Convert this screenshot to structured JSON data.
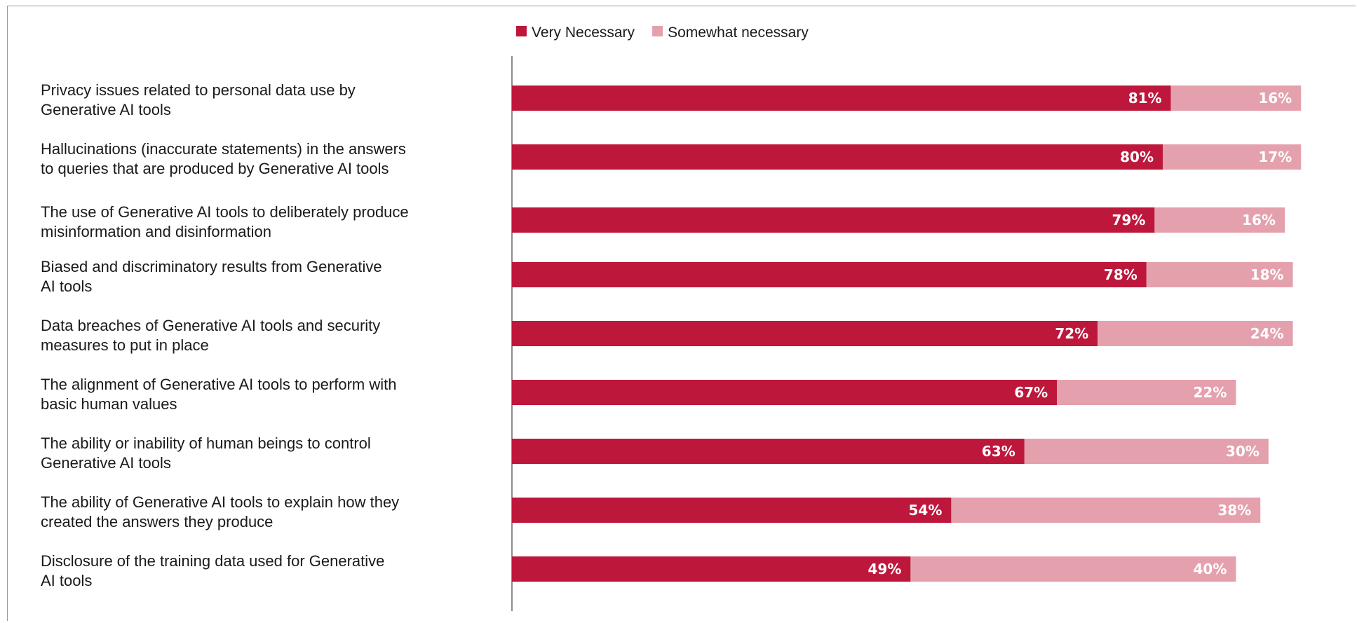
{
  "chart_data": {
    "type": "bar",
    "orientation": "horizontal",
    "stacked": true,
    "categories": [
      [
        "Privacy issues related to personal data use by",
        "Generative AI tools"
      ],
      [
        "Hallucinations (inaccurate statements) in the answers",
        "to queries that are produced by Generative AI tools"
      ],
      [
        "The use of Generative AI tools to deliberately produce",
        "misinformation and disinformation"
      ],
      [
        "Biased and discriminatory results from Generative",
        "AI tools"
      ],
      [
        "Data breaches of Generative AI tools and security",
        "measures to put in place"
      ],
      [
        "The alignment of Generative AI tools to perform with",
        "basic human values"
      ],
      [
        "The ability or inability of human beings to control",
        "Generative AI tools"
      ],
      [
        "The ability of Generative AI tools to explain how they",
        "created the answers they produce"
      ],
      [
        "Disclosure of the training data used for Generative",
        "AI tools"
      ]
    ],
    "series": [
      {
        "name": "Very Necessary",
        "color": "#be173c",
        "values": [
          81,
          80,
          79,
          78,
          72,
          67,
          63,
          54,
          49
        ]
      },
      {
        "name": "Somewhat necessary",
        "color": "#e4a1ad",
        "values": [
          16,
          17,
          16,
          18,
          24,
          22,
          30,
          38,
          40
        ]
      }
    ],
    "value_suffix": "%",
    "xlim": [
      0,
      100
    ],
    "legend_position": "top",
    "grid": false
  }
}
